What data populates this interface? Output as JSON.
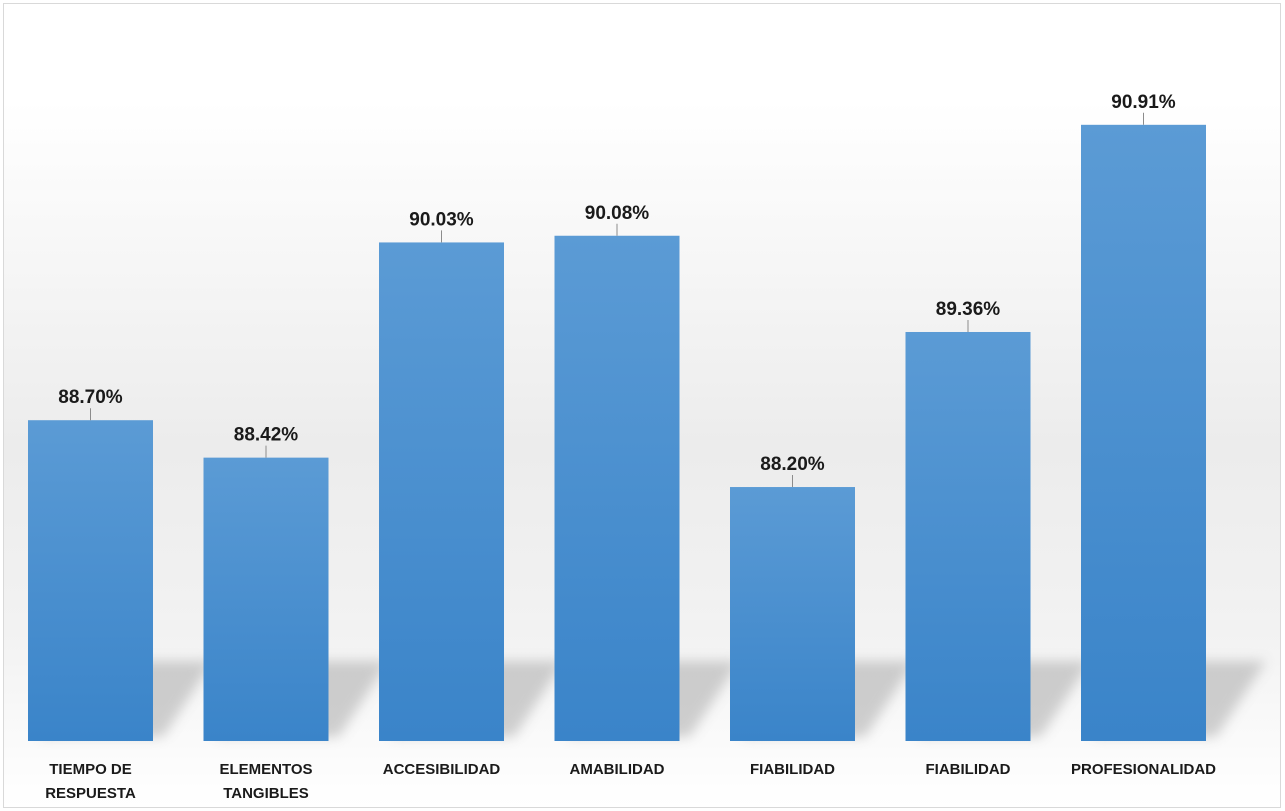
{
  "chart_data": {
    "type": "bar",
    "categories": [
      "TIEMPO DE RESPUESTA",
      "ELEMENTOS TANGIBLES",
      "ACCESIBILIDAD",
      "AMABILIDAD",
      "FIABILIDAD",
      "FIABILIDAD",
      "PROFESIONALIDAD"
    ],
    "category_lines": [
      [
        "TIEMPO DE",
        "RESPUESTA"
      ],
      [
        "ELEMENTOS",
        "TANGIBLES"
      ],
      [
        "ACCESIBILIDAD"
      ],
      [
        "AMABILIDAD"
      ],
      [
        "FIABILIDAD"
      ],
      [
        "FIABILIDAD"
      ],
      [
        "PROFESIONALIDAD"
      ]
    ],
    "values": [
      88.7,
      88.42,
      90.03,
      90.08,
      88.2,
      89.36,
      90.91
    ],
    "data_labels": [
      "88.70%",
      "88.42%",
      "90.03%",
      "90.08%",
      "88.20%",
      "89.36%",
      "90.91%"
    ],
    "title": "",
    "xlabel": "",
    "ylabel": "",
    "ylim": [
      86.3,
      91.35
    ],
    "grid": false,
    "legend": "none",
    "bar_color_top": "#5b9bd5",
    "bar_color_bottom": "#3a84c9"
  }
}
